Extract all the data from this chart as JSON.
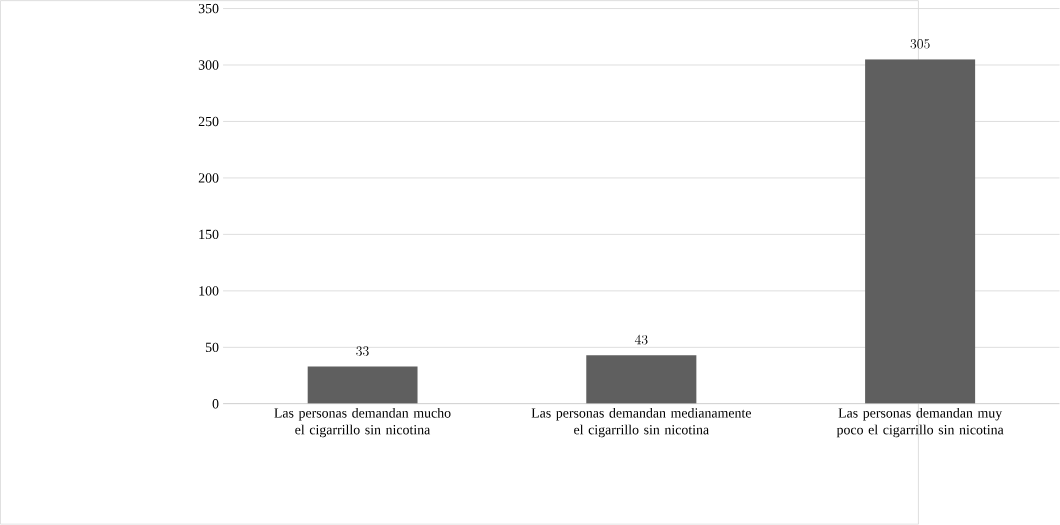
{
  "chart_data": {
    "type": "bar",
    "categories": [
      "Las personas demandan mucho el cigarrillo sin nicotina",
      "Las personas demandan medianamente el cigarrillo sin nicotina",
      "Las personas demandan muy poco el cigarrillo sin nicotina"
    ],
    "values": [
      33,
      43,
      305
    ],
    "color": "#5f5f5f",
    "ylim": [
      0,
      350
    ],
    "yticks": [
      0,
      50,
      100,
      150,
      200,
      250,
      300,
      350
    ],
    "grid": "y",
    "data_labels": true
  }
}
